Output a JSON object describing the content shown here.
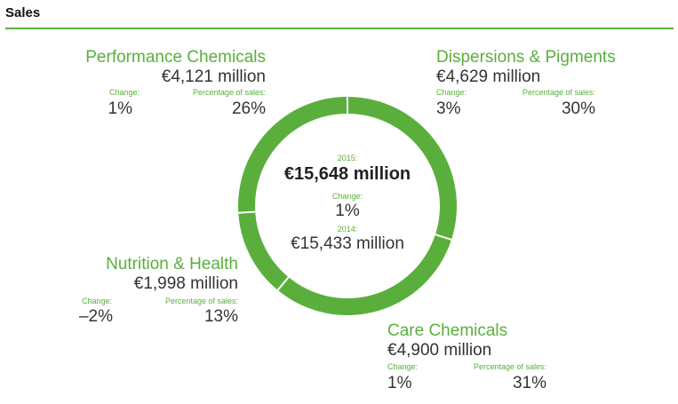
{
  "page": {
    "title": "Sales"
  },
  "colors": {
    "accent": "#5aaf3c",
    "text": "#333333"
  },
  "center": {
    "year_current_label": "2015:",
    "current_total": "€15,648 million",
    "change_label": "Change:",
    "change_value": "1%",
    "year_prior_label": "2014:",
    "prior_total": "€15,433 million"
  },
  "segments": [
    {
      "name": "Performance Chemicals",
      "amount": "€4,121 million",
      "change_label": "Change:",
      "change": "1%",
      "share_label": "Percentage of sales:",
      "share": "26%"
    },
    {
      "name": "Dispersions & Pigments",
      "amount": "€4,629 million",
      "change_label": "Change:",
      "change": "3%",
      "share_label": "Percentage of sales:",
      "share": "30%"
    },
    {
      "name": "Nutrition & Health",
      "amount": "€1,998 million",
      "change_label": "Change:",
      "change": "–2%",
      "share_label": "Percentage of sales:",
      "share": "13%"
    },
    {
      "name": "Care Chemicals",
      "amount": "€4,900 million",
      "change_label": "Change:",
      "change": "1%",
      "share_label": "Percentage of sales:",
      "share": "31%"
    }
  ],
  "chart_data": {
    "type": "pie",
    "title": "Sales",
    "categories": [
      "Dispersions & Pigments",
      "Care Chemicals",
      "Nutrition & Health",
      "Performance Chemicals"
    ],
    "values": [
      30,
      31,
      13,
      26
    ],
    "amounts_million_eur": [
      4629,
      4900,
      1998,
      4121
    ],
    "change_percent": [
      3,
      1,
      -2,
      1
    ],
    "total_2015_million_eur": 15648,
    "total_2014_million_eur": 15433,
    "total_change_percent": 1
  }
}
